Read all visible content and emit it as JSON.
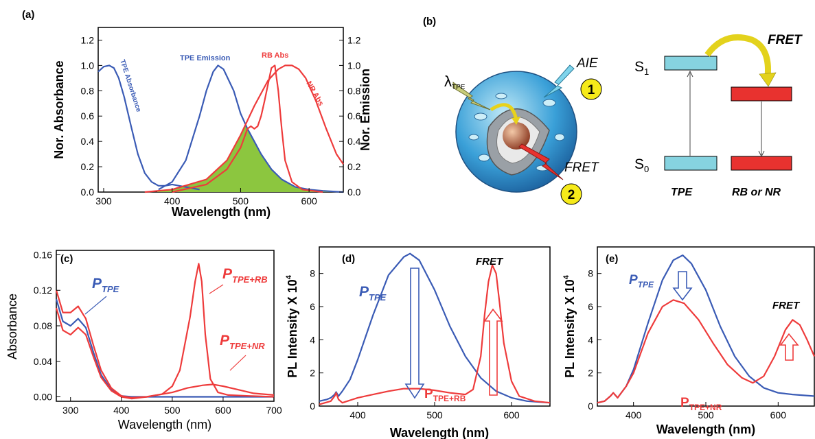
{
  "panel_labels": {
    "a": "(a)",
    "b": "(b)",
    "c": "(c)",
    "d": "(d)",
    "e": "(e)"
  },
  "colors": {
    "blue": "#3a5bb5",
    "red": "#ee3b3b",
    "green": "#8cc63f",
    "redfill": "#ee4433",
    "cyan": "#86d3e0",
    "box_red": "#e8322f",
    "badge": "#f6ea1a"
  },
  "chart_data": [
    {
      "id": "a",
      "type": "line",
      "xlabel": "Wavelength (nm)",
      "ylabel": "Nor. Absorbance",
      "ylabel_right": "Nor. Emission",
      "xlim": [
        292,
        650
      ],
      "ylim": [
        0,
        1.3
      ],
      "xticks": [
        "300",
        "400",
        "500",
        "600"
      ],
      "yticks": [
        "0.0",
        "0.2",
        "0.4",
        "0.6",
        "0.8",
        "1.0",
        "1.2"
      ],
      "yticks_right": [
        "0.0",
        "0.2",
        "0.4",
        "0.6",
        "0.8",
        "1.0",
        "1.2"
      ],
      "series": [
        {
          "name": "TPE Absorbance",
          "color": "#3a5bb5",
          "x": [
            292,
            300,
            308,
            315,
            322,
            330,
            340,
            350,
            360,
            370,
            380,
            390,
            400,
            410,
            420,
            430,
            440
          ],
          "y": [
            0.95,
            0.99,
            1.0,
            0.98,
            0.9,
            0.75,
            0.52,
            0.3,
            0.15,
            0.08,
            0.05,
            0.05,
            0.06,
            0.05,
            0.04,
            0.03,
            0.02
          ]
        },
        {
          "name": "TPE Emission",
          "color": "#3a5bb5",
          "x": [
            380,
            400,
            420,
            440,
            450,
            460,
            467,
            475,
            490,
            500,
            510,
            520,
            530,
            545,
            560,
            580,
            600,
            620,
            650
          ],
          "y": [
            0.02,
            0.08,
            0.25,
            0.6,
            0.8,
            0.95,
            1.0,
            0.97,
            0.8,
            0.62,
            0.5,
            0.4,
            0.3,
            0.18,
            0.1,
            0.04,
            0.02,
            0.01,
            0.0
          ]
        },
        {
          "name": "RB Abs",
          "color": "#ee3b3b",
          "x": [
            400,
            450,
            480,
            500,
            510,
            515,
            520,
            525,
            530,
            535,
            540,
            545,
            550,
            555,
            560,
            565,
            575,
            590,
            620
          ],
          "y": [
            0.0,
            0.06,
            0.18,
            0.35,
            0.5,
            0.52,
            0.5,
            0.52,
            0.6,
            0.72,
            0.85,
            0.98,
            1.0,
            0.8,
            0.5,
            0.25,
            0.08,
            0.02,
            0.0
          ]
        },
        {
          "name": "NR Abs",
          "color": "#ee3b3b",
          "x": [
            360,
            400,
            450,
            480,
            500,
            520,
            540,
            555,
            565,
            575,
            585,
            595,
            610,
            625,
            640,
            650
          ],
          "y": [
            0.0,
            0.02,
            0.1,
            0.25,
            0.45,
            0.68,
            0.88,
            0.97,
            1.0,
            1.0,
            0.97,
            0.9,
            0.72,
            0.5,
            0.3,
            0.22
          ]
        }
      ],
      "annotations": [
        "TPE Absorbance",
        "TPE Emission",
        "RB Abs",
        "NR Abs"
      ]
    },
    {
      "id": "c",
      "type": "line",
      "xlabel": "Wavelength (nm)",
      "ylabel": "Absorbance",
      "xlim": [
        272,
        700
      ],
      "ylim": [
        -0.005,
        0.165
      ],
      "xticks": [
        "300",
        "400",
        "500",
        "600",
        "700"
      ],
      "yticks": [
        "0.00",
        "0.04",
        "0.08",
        "0.12",
        "0.16"
      ],
      "series": [
        {
          "name": "P_TPE",
          "color": "#3a5bb5",
          "x": [
            272,
            285,
            300,
            315,
            330,
            345,
            360,
            380,
            400,
            420,
            500,
            600,
            700
          ],
          "y": [
            0.11,
            0.085,
            0.08,
            0.088,
            0.078,
            0.05,
            0.025,
            0.008,
            0.001,
            0.0,
            0.0,
            0.0,
            0.0
          ]
        },
        {
          "name": "P_TPE+RB",
          "color": "#ee3b3b",
          "x": [
            272,
            285,
            300,
            315,
            330,
            345,
            360,
            380,
            400,
            420,
            450,
            480,
            500,
            515,
            525,
            535,
            545,
            552,
            558,
            565,
            575,
            590,
            610,
            650,
            700
          ],
          "y": [
            0.12,
            0.095,
            0.095,
            0.102,
            0.088,
            0.058,
            0.03,
            0.01,
            0.001,
            -0.001,
            0.0,
            0.003,
            0.012,
            0.03,
            0.06,
            0.09,
            0.13,
            0.15,
            0.13,
            0.07,
            0.02,
            0.005,
            0.002,
            0.001,
            0.0
          ]
        },
        {
          "name": "P_TPE+NR",
          "color": "#ee3b3b",
          "x": [
            272,
            285,
            300,
            315,
            330,
            345,
            360,
            380,
            400,
            420,
            450,
            500,
            530,
            560,
            580,
            600,
            630,
            660,
            700
          ],
          "y": [
            0.1,
            0.075,
            0.07,
            0.078,
            0.07,
            0.045,
            0.022,
            0.007,
            0.0,
            -0.002,
            0.0,
            0.005,
            0.01,
            0.013,
            0.014,
            0.012,
            0.008,
            0.004,
            0.002
          ]
        }
      ],
      "annotations": [
        {
          "main": "P",
          "sub": "TPE"
        },
        {
          "main": "P",
          "sub": "TPE+RB"
        },
        {
          "main": "P",
          "sub": "TPE+NR"
        }
      ]
    },
    {
      "id": "d",
      "type": "line",
      "xlabel": "Wavelength (nm)",
      "ylabel": "PL Intensity X 10",
      "ylabel_sup": "4",
      "xlim": [
        350,
        650
      ],
      "ylim": [
        0,
        9.6
      ],
      "xticks": [
        "400",
        "500",
        "600"
      ],
      "yticks": [
        "0",
        "2",
        "4",
        "6",
        "8"
      ],
      "series": [
        {
          "name": "P_TPE",
          "color": "#3a5bb5",
          "x": [
            350,
            360,
            365,
            370,
            372,
            375,
            380,
            390,
            400,
            420,
            440,
            460,
            468,
            480,
            500,
            520,
            540,
            560,
            580,
            600,
            620,
            650
          ],
          "y": [
            0.3,
            0.4,
            0.5,
            0.7,
            0.85,
            0.6,
            0.9,
            1.6,
            2.8,
            5.5,
            7.9,
            9.0,
            9.2,
            8.8,
            7.0,
            4.8,
            3.0,
            1.7,
            0.9,
            0.5,
            0.3,
            0.2
          ]
        },
        {
          "name": "P_TPE+RB",
          "color": "#ee3b3b",
          "x": [
            350,
            365,
            370,
            372,
            375,
            380,
            400,
            420,
            440,
            460,
            480,
            500,
            520,
            540,
            550,
            560,
            565,
            570,
            575,
            580,
            585,
            590,
            600,
            610,
            630,
            650
          ],
          "y": [
            0.1,
            0.3,
            0.6,
            0.8,
            0.4,
            0.2,
            0.5,
            0.7,
            0.9,
            1.05,
            1.05,
            0.95,
            0.8,
            0.7,
            1.0,
            3.0,
            5.5,
            7.5,
            8.5,
            8.0,
            6.0,
            3.8,
            1.5,
            0.6,
            0.3,
            0.2
          ]
        }
      ],
      "annotations": [
        {
          "main": "P",
          "sub": "TPE"
        },
        {
          "main": "P",
          "sub": "TPE+RB"
        },
        "FRET"
      ]
    },
    {
      "id": "e",
      "type": "line",
      "xlabel": "Wavelength (nm)",
      "ylabel": "PL Intensity X 10",
      "ylabel_sup": "4",
      "xlim": [
        350,
        650
      ],
      "ylim": [
        0,
        9.6
      ],
      "xticks": [
        "400",
        "500",
        "600"
      ],
      "yticks": [
        "0",
        "2",
        "4",
        "6",
        "8"
      ],
      "series": [
        {
          "name": "P_TPE",
          "color": "#3a5bb5",
          "x": [
            350,
            360,
            368,
            372,
            378,
            390,
            400,
            420,
            440,
            455,
            468,
            480,
            500,
            520,
            540,
            560,
            580,
            600,
            620,
            650
          ],
          "y": [
            0.2,
            0.3,
            0.6,
            0.8,
            0.5,
            1.2,
            2.2,
            5.0,
            7.6,
            8.8,
            9.1,
            8.6,
            7.0,
            4.8,
            3.0,
            1.8,
            1.1,
            0.8,
            0.7,
            0.6
          ]
        },
        {
          "name": "P_TPE+NR",
          "color": "#ee3b3b",
          "x": [
            350,
            360,
            368,
            372,
            378,
            390,
            400,
            420,
            440,
            455,
            470,
            490,
            510,
            530,
            550,
            565,
            580,
            595,
            610,
            620,
            630,
            640,
            650
          ],
          "y": [
            0.2,
            0.3,
            0.6,
            0.8,
            0.5,
            1.2,
            2.0,
            4.4,
            6.0,
            6.4,
            6.2,
            5.2,
            3.8,
            2.5,
            1.7,
            1.4,
            1.8,
            3.0,
            4.6,
            5.2,
            4.9,
            4.0,
            3.0
          ]
        }
      ],
      "annotations": [
        {
          "main": "P",
          "sub": "TPE"
        },
        {
          "main": "P",
          "sub": "TPE+NR"
        },
        "FRET"
      ]
    }
  ],
  "diagram_b": {
    "lambda_symbol": "λ",
    "lambda_sub": "TPE",
    "aie_label": "AIE",
    "fret_label": "FRET",
    "badge_1": "1",
    "badge_2": "2",
    "s1_main": "S",
    "s1_sub": "1",
    "s0_main": "S",
    "s0_sub": "0",
    "fret_arrow_label": "FRET",
    "tpe_label": "TPE",
    "acceptor_label": "RB or NR"
  }
}
